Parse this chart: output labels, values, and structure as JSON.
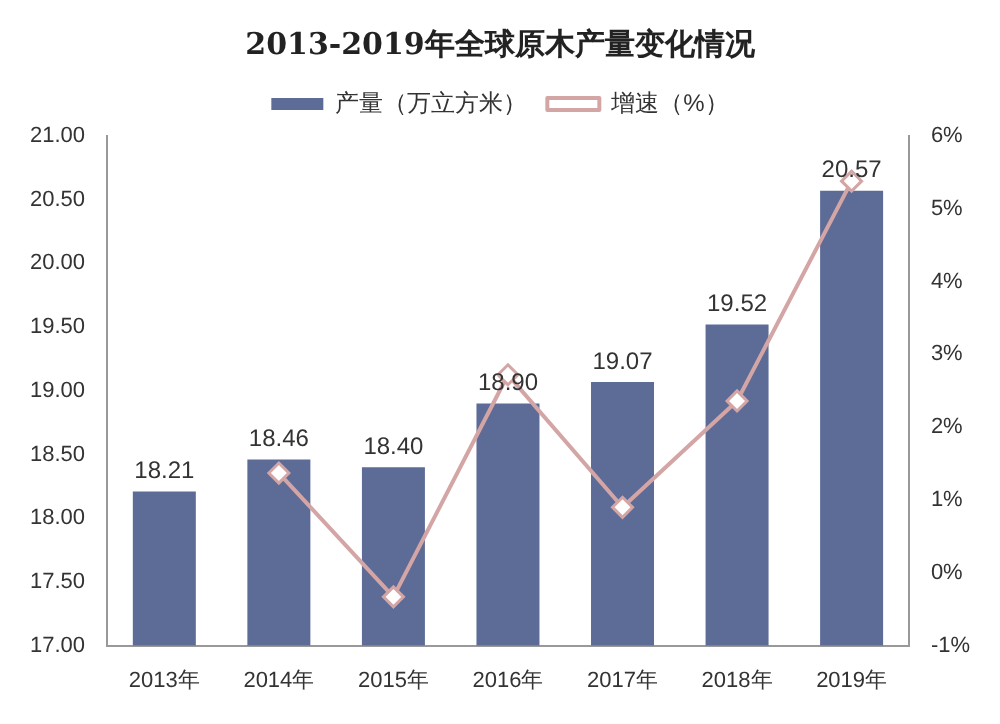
{
  "chart_data": {
    "type": "bar",
    "title": "2013-2019年全球原木产量变化情况",
    "categories": [
      "2013年",
      "2014年",
      "2015年",
      "2016年",
      "2017年",
      "2018年",
      "2019年"
    ],
    "series": [
      {
        "name": "产量（万立方米）",
        "color": "#5d6b97",
        "values": [
          18.21,
          18.46,
          18.4,
          18.9,
          19.07,
          19.52,
          20.57
        ],
        "value_labels": [
          "18.21",
          "18.46",
          "18.40",
          "18.90",
          "19.07",
          "19.52",
          "20.57"
        ]
      },
      {
        "name": "增速（%）",
        "type": "line",
        "axis": "y2",
        "color": "#d4a5a5",
        "marker": "diamond",
        "values": [
          null,
          1.37,
          -0.33,
          2.72,
          0.9,
          2.36,
          5.38
        ]
      }
    ],
    "ylim": [
      17,
      21
    ],
    "yticks": [
      {
        "value": 17,
        "label": "17.00"
      },
      {
        "value": 17.5,
        "label": "17.50"
      },
      {
        "value": 18,
        "label": "18.00"
      },
      {
        "value": 18.5,
        "label": "18.50"
      },
      {
        "value": 19,
        "label": "19.00"
      },
      {
        "value": 19.5,
        "label": "19.50"
      },
      {
        "value": 20,
        "label": "20.00"
      },
      {
        "value": 20.5,
        "label": "20.50"
      },
      {
        "value": 21,
        "label": "21.00"
      }
    ],
    "y2lim": [
      -1,
      6
    ],
    "y2ticks": [
      {
        "value": -1,
        "label": "-1%"
      },
      {
        "value": 0,
        "label": "0%"
      },
      {
        "value": 1,
        "label": "1%"
      },
      {
        "value": 2,
        "label": "2%"
      },
      {
        "value": 3,
        "label": "3%"
      },
      {
        "value": 4,
        "label": "4%"
      },
      {
        "value": 5,
        "label": "5%"
      },
      {
        "value": 6,
        "label": "6%"
      }
    ],
    "legend": "top",
    "grid": false
  }
}
